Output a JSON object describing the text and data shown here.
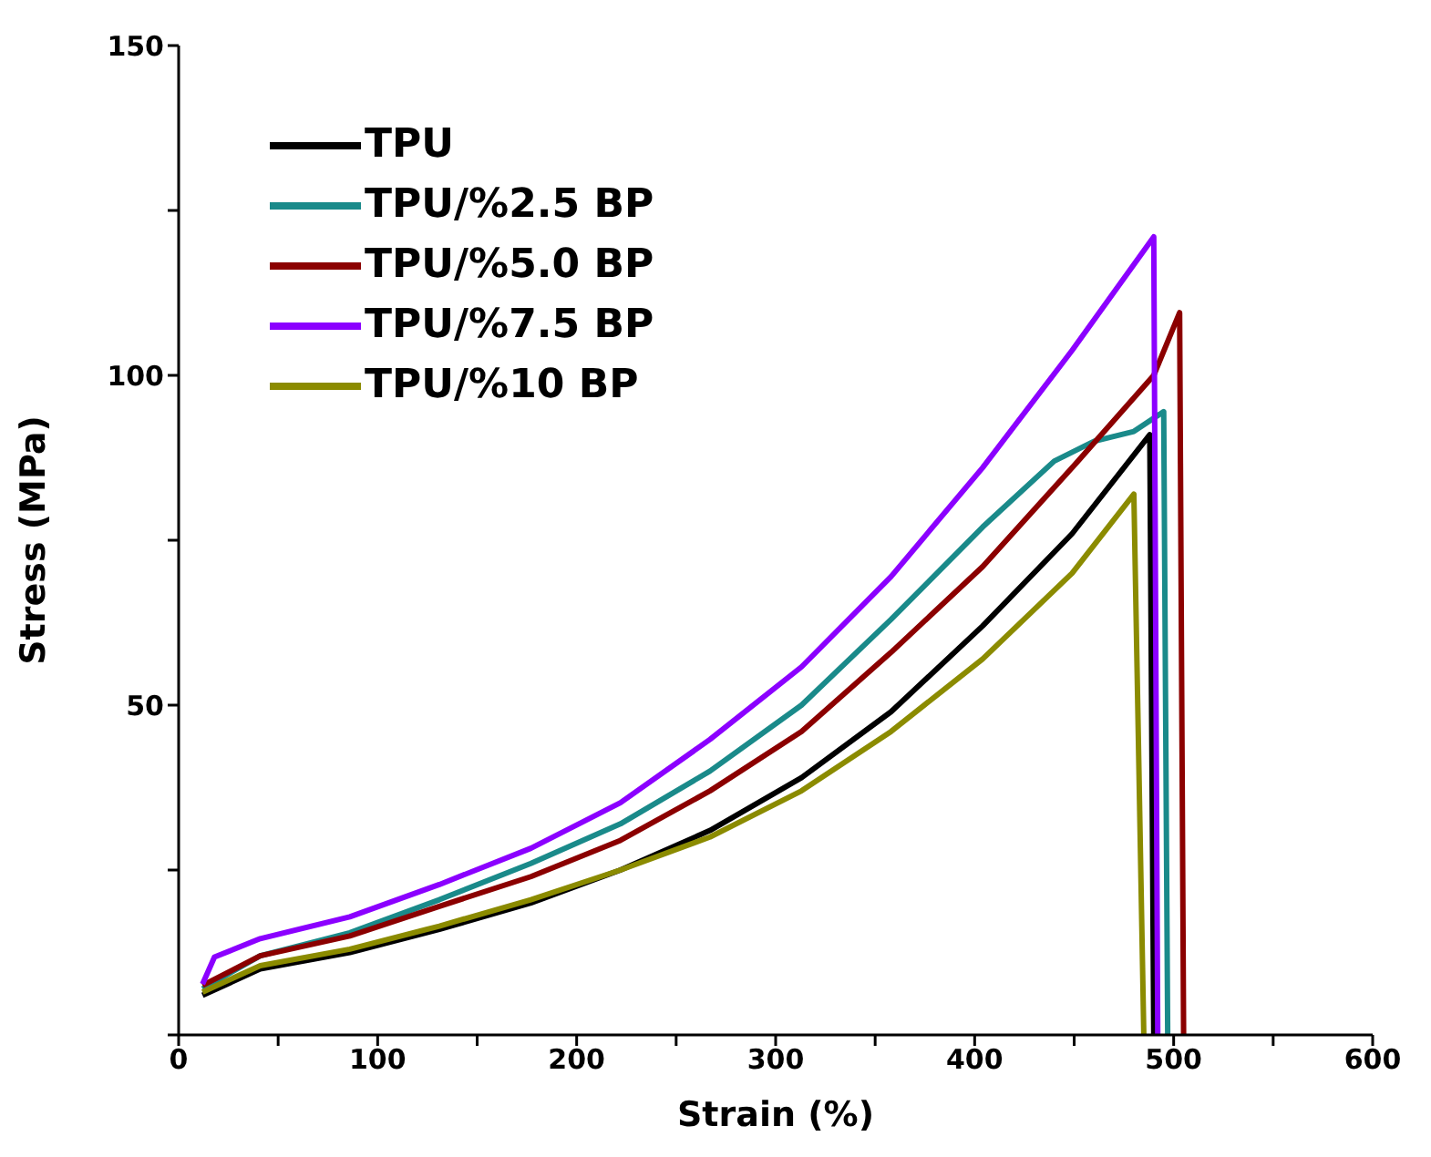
{
  "chart_data": {
    "type": "line",
    "xlabel": "Strain (%)",
    "ylabel": "Stress (MPa)",
    "xlim": [
      0,
      600
    ],
    "ylim": [
      0,
      150
    ],
    "xticks": [
      0,
      {
        "value": 50,
        "label": null
      },
      100,
      {
        "value": 150,
        "label": null
      },
      200,
      {
        "value": 250,
        "label": null
      },
      300,
      {
        "value": 350,
        "label": null
      },
      400,
      {
        "value": 450,
        "label": null
      },
      500,
      {
        "value": 550,
        "label": null
      },
      600
    ],
    "yticks": [
      {
        "value": 0,
        "label": null
      },
      {
        "value": 25,
        "label": null
      },
      50,
      {
        "value": 75,
        "label": null
      },
      100,
      {
        "value": 125,
        "label": null
      },
      150
    ],
    "legend": "top left",
    "grid": false,
    "marker": "none",
    "line_style": "solid",
    "series": [
      {
        "name": "TPU",
        "color": "#000000",
        "x": [
          12,
          41,
          86,
          131,
          177,
          222,
          267,
          313,
          358,
          404,
          449,
          488,
          490
        ],
        "values": [
          6,
          10,
          12.5,
          16,
          20,
          25,
          31,
          39,
          49,
          62,
          76,
          91,
          0
        ]
      },
      {
        "name": "TPU/%2.5 BP",
        "color": "#1a8a8a",
        "x": [
          12,
          41,
          86,
          131,
          177,
          222,
          267,
          313,
          358,
          404,
          440,
          460,
          480,
          495,
          497
        ],
        "values": [
          7,
          12,
          15.5,
          20.5,
          26,
          32,
          40,
          50,
          63,
          77,
          87,
          90,
          91.5,
          94.5,
          0
        ]
      },
      {
        "name": "TPU/%5.0 BP",
        "color": "#8b0000",
        "x": [
          12,
          41,
          86,
          131,
          177,
          222,
          267,
          313,
          358,
          404,
          449,
          490,
          503,
          505
        ],
        "values": [
          7.5,
          12,
          15,
          19.5,
          24,
          29.5,
          37,
          46,
          58,
          71,
          86,
          100,
          109.5,
          0
        ]
      },
      {
        "name": "TPU/%7.5 BP",
        "color": "#8b00ff",
        "x": [
          12,
          18,
          41,
          86,
          131,
          177,
          222,
          267,
          313,
          358,
          404,
          449,
          490,
          492
        ],
        "values": [
          7.7,
          11.8,
          14.6,
          17.9,
          22.8,
          28.3,
          35.2,
          44.8,
          55.8,
          69.5,
          86,
          103.8,
          121,
          0
        ]
      },
      {
        "name": "TPU/%10 BP",
        "color": "#8b8b00",
        "x": [
          12,
          41,
          86,
          131,
          177,
          222,
          267,
          313,
          358,
          404,
          449,
          480,
          485
        ],
        "values": [
          6.5,
          10.5,
          13,
          16.5,
          20.5,
          25,
          30,
          37,
          46,
          57,
          70,
          82,
          0
        ]
      }
    ]
  }
}
